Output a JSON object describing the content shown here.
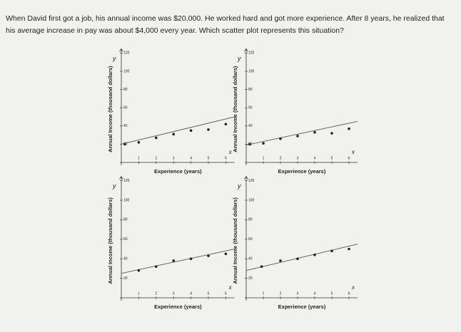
{
  "question": "When David first got a job, his annual income was $20,000. He worked hard and got more experience. After 8 years, he realized that his average increase in pay was about $4,000 every year. Which scatter plot represents this situation?",
  "chart_data": [
    {
      "type": "scatter",
      "x_axis_label": "x",
      "y_axis_label": "y",
      "xlabel": "Experience (years)",
      "ylabel": "Annual Income (thousand dollars)",
      "xlim": [
        0,
        6.5
      ],
      "ylim": [
        0,
        120
      ],
      "xticks": [
        1,
        2,
        3,
        4,
        5,
        6
      ],
      "yticks": [
        20,
        40,
        60,
        80,
        100,
        120
      ],
      "color": "#222222",
      "x": [
        0.2,
        1,
        2,
        3,
        4,
        5,
        6
      ],
      "values": [
        20,
        22,
        27,
        31,
        35,
        36,
        42
      ],
      "trend": {
        "x": [
          0,
          6.5
        ],
        "values": [
          20,
          50
        ],
        "color": "#666666"
      }
    },
    {
      "type": "scatter",
      "x_axis_label": "x",
      "y_axis_label": "y",
      "xlabel": "Experience (years)",
      "ylabel": "Annual Income (thousand dollars)",
      "xlim": [
        0,
        6.5
      ],
      "ylim": [
        0,
        120
      ],
      "xticks": [
        1,
        2,
        3,
        4,
        5,
        6
      ],
      "yticks": [
        20,
        40,
        60,
        80,
        100,
        120
      ],
      "color": "#222222",
      "x": [
        0.2,
        1,
        2,
        3,
        4,
        5,
        6
      ],
      "values": [
        20,
        21,
        26,
        29,
        33,
        32,
        37
      ],
      "trend": {
        "x": [
          0,
          6.5
        ],
        "values": [
          19,
          45
        ],
        "color": "#666666"
      }
    },
    {
      "type": "scatter",
      "x_axis_label": "x",
      "y_axis_label": "y",
      "xlabel": "Experience (years)",
      "ylabel": "Annual Income (thousand dollars)",
      "xlim": [
        0,
        6.5
      ],
      "ylim": [
        0,
        120
      ],
      "xticks": [
        1,
        2,
        3,
        4,
        5,
        6
      ],
      "yticks": [
        20,
        40,
        60,
        80,
        100,
        120
      ],
      "color": "#222222",
      "x": [
        1,
        2,
        3,
        4,
        5,
        6
      ],
      "values": [
        28,
        32,
        38,
        40,
        43,
        45
      ],
      "trend": {
        "x": [
          0,
          6.5
        ],
        "values": [
          25,
          50
        ],
        "color": "#666666"
      }
    },
    {
      "type": "scatter",
      "x_axis_label": "x",
      "y_axis_label": "y",
      "xlabel": "Experience (years)",
      "ylabel": "Annual Income (thousand dollars)",
      "xlim": [
        0,
        6.5
      ],
      "ylim": [
        0,
        120
      ],
      "xticks": [
        1,
        2,
        3,
        4,
        5,
        6
      ],
      "yticks": [
        20,
        40,
        60,
        80,
        100,
        120
      ],
      "color": "#222222",
      "x": [
        0.9,
        2,
        3,
        4,
        5,
        6
      ],
      "values": [
        32,
        38,
        40,
        44,
        48,
        50
      ],
      "trend": {
        "x": [
          0,
          6.5
        ],
        "values": [
          28,
          55
        ],
        "color": "#666666"
      }
    }
  ]
}
